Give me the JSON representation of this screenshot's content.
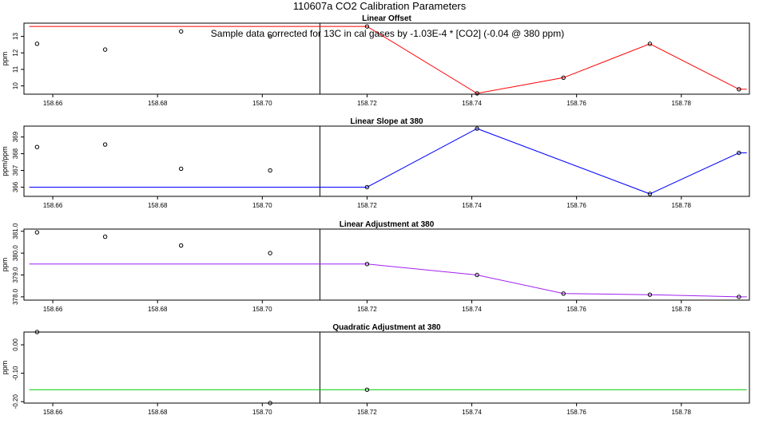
{
  "title": "110607a   CO2 Calibration Parameters",
  "annotation": "Sample data corrected for 13C in cal gases by -1.03E-4 * [CO2] (-0.04 @ 380 ppm)",
  "chart_data": [
    {
      "type": "scatter",
      "title": "Linear Offset",
      "xlabel": "",
      "ylabel": "ppm",
      "xlim": [
        158.6545,
        158.793
      ],
      "ylim": [
        9.5,
        13.8
      ],
      "xticks": [
        "158.66",
        "158.68",
        "158.70",
        "158.72",
        "158.74",
        "158.76",
        "158.78"
      ],
      "yticks": [
        "10",
        "11",
        "12",
        "13"
      ],
      "vline_x": 158.711,
      "points": [
        {
          "x": 158.657,
          "y": 12.55
        },
        {
          "x": 158.67,
          "y": 12.2
        },
        {
          "x": 158.6845,
          "y": 13.3
        },
        {
          "x": 158.7015,
          "y": 13.0
        },
        {
          "x": 158.72,
          "y": 13.6
        },
        {
          "x": 158.741,
          "y": 9.55
        },
        {
          "x": 158.7575,
          "y": 10.5
        },
        {
          "x": 158.774,
          "y": 12.55
        },
        {
          "x": 158.791,
          "y": 9.8
        }
      ],
      "line": {
        "color": "#ff0000",
        "points": [
          {
            "x": 158.6555,
            "y": 13.6
          },
          {
            "x": 158.72,
            "y": 13.6
          },
          {
            "x": 158.741,
            "y": 9.55
          },
          {
            "x": 158.7575,
            "y": 10.5
          },
          {
            "x": 158.774,
            "y": 12.55
          },
          {
            "x": 158.791,
            "y": 9.8
          },
          {
            "x": 158.7925,
            "y": 9.8
          }
        ]
      }
    },
    {
      "type": "scatter",
      "title": "Linear Slope at 380",
      "xlabel": "",
      "ylabel": "ppm/ppm",
      "xlim": [
        158.6545,
        158.793
      ],
      "ylim": [
        365.45,
        369.65
      ],
      "xticks": [
        "158.66",
        "158.68",
        "158.70",
        "158.72",
        "158.74",
        "158.76",
        "158.78"
      ],
      "yticks": [
        "366",
        "367",
        "368",
        "369"
      ],
      "vline_x": 158.711,
      "points": [
        {
          "x": 158.657,
          "y": 368.4
        },
        {
          "x": 158.67,
          "y": 368.55
        },
        {
          "x": 158.6845,
          "y": 367.1
        },
        {
          "x": 158.7015,
          "y": 367.0
        },
        {
          "x": 158.72,
          "y": 366.0
        },
        {
          "x": 158.741,
          "y": 369.5
        },
        {
          "x": 158.774,
          "y": 365.6
        },
        {
          "x": 158.791,
          "y": 368.05
        }
      ],
      "line": {
        "color": "#0000ff",
        "points": [
          {
            "x": 158.6555,
            "y": 366.0
          },
          {
            "x": 158.72,
            "y": 366.0
          },
          {
            "x": 158.741,
            "y": 369.5
          },
          {
            "x": 158.774,
            "y": 365.6
          },
          {
            "x": 158.791,
            "y": 368.05
          },
          {
            "x": 158.7925,
            "y": 368.05
          }
        ]
      }
    },
    {
      "type": "scatter",
      "title": "Linear Adjustment at 380",
      "xlabel": "",
      "ylabel": "ppm",
      "xlim": [
        158.6545,
        158.793
      ],
      "ylim": [
        377.85,
        381.1
      ],
      "xticks": [
        "158.66",
        "158.68",
        "158.70",
        "158.72",
        "158.74",
        "158.76",
        "158.78"
      ],
      "yticks": [
        "378.0",
        "379.0",
        "380.0",
        "381.0"
      ],
      "vline_x": 158.711,
      "points": [
        {
          "x": 158.657,
          "y": 380.95
        },
        {
          "x": 158.67,
          "y": 380.75
        },
        {
          "x": 158.6845,
          "y": 380.35
        },
        {
          "x": 158.7015,
          "y": 380.0
        },
        {
          "x": 158.72,
          "y": 379.5
        },
        {
          "x": 158.741,
          "y": 379.0
        },
        {
          "x": 158.7575,
          "y": 378.15
        },
        {
          "x": 158.774,
          "y": 378.1
        },
        {
          "x": 158.791,
          "y": 378.0
        }
      ],
      "line": {
        "color": "#a020f0",
        "points": [
          {
            "x": 158.6555,
            "y": 379.5
          },
          {
            "x": 158.72,
            "y": 379.5
          },
          {
            "x": 158.741,
            "y": 379.0
          },
          {
            "x": 158.7575,
            "y": 378.15
          },
          {
            "x": 158.774,
            "y": 378.1
          },
          {
            "x": 158.791,
            "y": 378.0
          },
          {
            "x": 158.7925,
            "y": 378.0
          }
        ]
      }
    },
    {
      "type": "scatter",
      "title": "Quadratic Adjustment at 380",
      "xlabel": "",
      "ylabel": "ppm",
      "xlim": [
        158.6545,
        158.793
      ],
      "ylim": [
        -0.205,
        0.045
      ],
      "xticks": [
        "158.66",
        "158.68",
        "158.70",
        "158.72",
        "158.74",
        "158.76",
        "158.78"
      ],
      "yticks": [
        "-0.20",
        "-0.10",
        "0.00"
      ],
      "vline_x": 158.711,
      "points": [
        {
          "x": 158.657,
          "y": 0.045
        },
        {
          "x": 158.7015,
          "y": -0.205
        },
        {
          "x": 158.72,
          "y": -0.158
        }
      ],
      "line": {
        "color": "#00cc00",
        "points": [
          {
            "x": 158.6555,
            "y": -0.158
          },
          {
            "x": 158.7925,
            "y": -0.158
          }
        ]
      }
    }
  ]
}
